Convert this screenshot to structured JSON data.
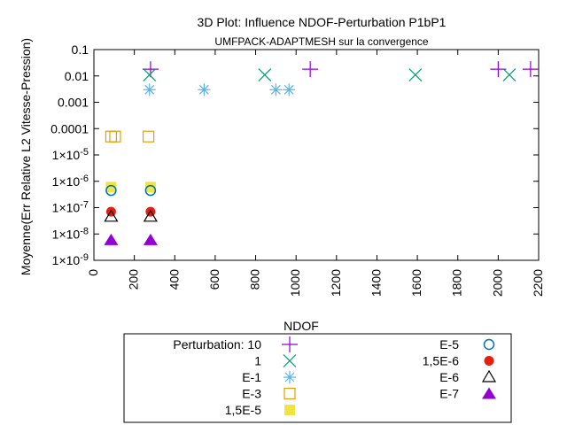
{
  "chart_data": {
    "type": "scatter",
    "title": "3D Plot: Influence NDOF-Perturbation P1bP1",
    "subtitle": "UMFPACK-ADAPTMESH sur la convergence",
    "xlabel": "NDOF",
    "ylabel": "Moyenne(Err Relative L2 Vitesse-Pression)",
    "xlim": [
      0,
      2200
    ],
    "ylim": [
      1e-09,
      0.1
    ],
    "y_scale": "log",
    "grid": false,
    "legend_placement": "below",
    "x_ticks": [
      {
        "value": 0,
        "label": "0"
      },
      {
        "value": 200,
        "label": "200"
      },
      {
        "value": 400,
        "label": "400"
      },
      {
        "value": 600,
        "label": "600"
      },
      {
        "value": 800,
        "label": "800"
      },
      {
        "value": 1000,
        "label": "1000"
      },
      {
        "value": 1200,
        "label": "1200"
      },
      {
        "value": 1400,
        "label": "1400"
      },
      {
        "value": 1600,
        "label": "1600"
      },
      {
        "value": 1800,
        "label": "1800"
      },
      {
        "value": 2000,
        "label": "2000"
      },
      {
        "value": 2200,
        "label": "2200"
      }
    ],
    "y_ticks": [
      {
        "value": 1e-09,
        "label": "1x10-9"
      },
      {
        "value": 1e-08,
        "label": "1x10-8"
      },
      {
        "value": 1e-07,
        "label": "1x10-7"
      },
      {
        "value": 1e-06,
        "label": "1x10-6"
      },
      {
        "value": 1e-05,
        "label": "1x10-5"
      },
      {
        "value": 0.0001,
        "label": "0.0001"
      },
      {
        "value": 0.001,
        "label": "0.001"
      },
      {
        "value": 0.01,
        "label": "0.01"
      },
      {
        "value": 0.1,
        "label": "0.1"
      }
    ],
    "series": [
      {
        "name": "Perturbation: 10",
        "marker": "plus",
        "color": "#9400d3",
        "points": [
          {
            "x": 280,
            "y": 0.018
          },
          {
            "x": 1070,
            "y": 0.018
          },
          {
            "x": 2000,
            "y": 0.018
          },
          {
            "x": 2160,
            "y": 0.018
          }
        ]
      },
      {
        "name": "1",
        "marker": "cross",
        "color": "#009e73",
        "points": [
          {
            "x": 275,
            "y": 0.011
          },
          {
            "x": 845,
            "y": 0.011
          },
          {
            "x": 1590,
            "y": 0.011
          },
          {
            "x": 2055,
            "y": 0.011
          }
        ]
      },
      {
        "name": "E-1",
        "marker": "star",
        "color": "#56b4e9",
        "points": [
          {
            "x": 275,
            "y": 0.003
          },
          {
            "x": 545,
            "y": 0.003
          },
          {
            "x": 900,
            "y": 0.003
          },
          {
            "x": 965,
            "y": 0.003
          }
        ]
      },
      {
        "name": "E-3",
        "marker": "open-square",
        "color": "#e69f00",
        "points": [
          {
            "x": 85,
            "y": 5e-05
          },
          {
            "x": 105,
            "y": 5e-05
          },
          {
            "x": 270,
            "y": 5e-05
          }
        ]
      },
      {
        "name": "1,5E-5",
        "marker": "filled-square",
        "color": "#f0e442",
        "points": [
          {
            "x": 85,
            "y": 6e-07
          },
          {
            "x": 280,
            "y": 6e-07
          }
        ]
      },
      {
        "name": "E-5",
        "marker": "open-circle",
        "color": "#0072b2",
        "points": [
          {
            "x": 85,
            "y": 4.5e-07
          },
          {
            "x": 280,
            "y": 4.5e-07
          }
        ]
      },
      {
        "name": "1,5E-6",
        "marker": "filled-circle",
        "color": "#e51e10",
        "points": [
          {
            "x": 85,
            "y": 7e-08
          },
          {
            "x": 280,
            "y": 7e-08
          }
        ]
      },
      {
        "name": "E-6",
        "marker": "open-triangle",
        "color": "#000000",
        "points": [
          {
            "x": 85,
            "y": 4.5e-08
          },
          {
            "x": 280,
            "y": 4.5e-08
          }
        ]
      },
      {
        "name": "E-7",
        "marker": "filled-triangle",
        "color": "#9400d3",
        "points": [
          {
            "x": 85,
            "y": 6e-09
          },
          {
            "x": 280,
            "y": 6e-09
          }
        ]
      }
    ]
  }
}
